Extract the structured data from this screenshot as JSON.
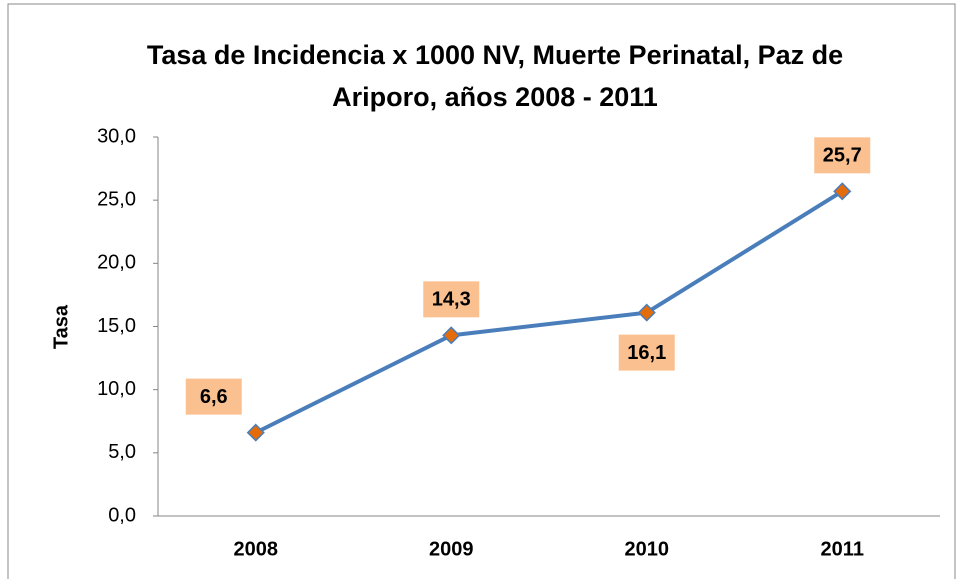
{
  "chart_data": {
    "type": "line",
    "title": "Tasa de Incidencia x 1000 NV, Muerte Perinatal, Paz de Ariporo, años 2008 - 2011",
    "y_label": "Tasa",
    "categories": [
      "2008",
      "2009",
      "2010",
      "2011"
    ],
    "series": [
      {
        "name": "Tasa",
        "color": "#4a7ebb",
        "marker_color": "#e46c0a",
        "values": [
          6.6,
          14.3,
          16.1,
          25.7
        ],
        "value_labels": [
          "6,6",
          "14,3",
          "16,1",
          "25,7"
        ]
      }
    ],
    "ylim": [
      0,
      30
    ],
    "yticks": [
      {
        "value": 0,
        "label": "0,0"
      },
      {
        "value": 5,
        "label": "5,0"
      },
      {
        "value": 10,
        "label": "10,0"
      },
      {
        "value": 15,
        "label": "15,0"
      },
      {
        "value": 20,
        "label": "20,0"
      },
      {
        "value": 25,
        "label": "25,0"
      },
      {
        "value": 30,
        "label": "30,0"
      }
    ],
    "grid": false,
    "label_box_color": "#fac090"
  }
}
